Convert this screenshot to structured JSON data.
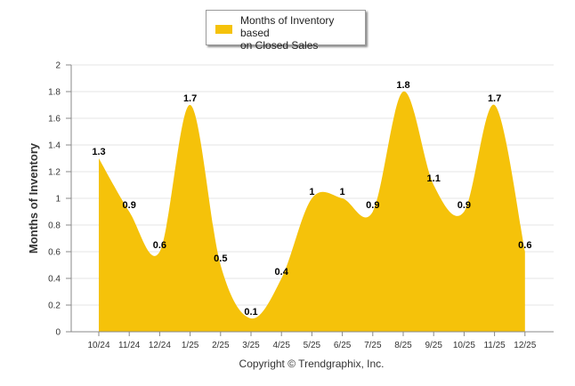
{
  "chart_data": {
    "type": "area",
    "title": "",
    "xlabel": "",
    "ylabel": "Months of Inventory",
    "ylim": [
      0,
      2
    ],
    "yticks": [
      "0",
      "0.2",
      "0.4",
      "0.6",
      "0.8",
      "1",
      "1.2",
      "1.4",
      "1.6",
      "1.8",
      "2"
    ],
    "categories": [
      "10/24",
      "11/24",
      "12/24",
      "1/25",
      "2/25",
      "3/25",
      "4/25",
      "5/25",
      "6/25",
      "7/25",
      "8/25",
      "9/25",
      "10/25",
      "11/25",
      "12/25"
    ],
    "series": [
      {
        "name": "Months of Inventory based on Closed Sales",
        "values": [
          1.3,
          0.9,
          0.6,
          1.7,
          0.5,
          0.1,
          0.4,
          1,
          1,
          0.9,
          1.8,
          1.1,
          0.9,
          1.7,
          0.6
        ],
        "labels": [
          "1.3",
          "0.9",
          "0.6",
          "1.7",
          "0.5",
          "0.1",
          "0.4",
          "1",
          "1",
          "0.9",
          "1.8",
          "1.1",
          "0.9",
          "1.7",
          "0.6"
        ],
        "color": "#f5c20a"
      }
    ],
    "legend": {
      "line1": "Months of Inventory based",
      "line2": "on Closed Sales",
      "position": "top-center"
    },
    "grid": true
  },
  "footer": {
    "copyright": "Copyright © Trendgraphix, Inc."
  },
  "colors": {
    "fill": "#f5c20a",
    "grid": "#e6e6e6",
    "axis": "#888888",
    "label": "#000000"
  }
}
